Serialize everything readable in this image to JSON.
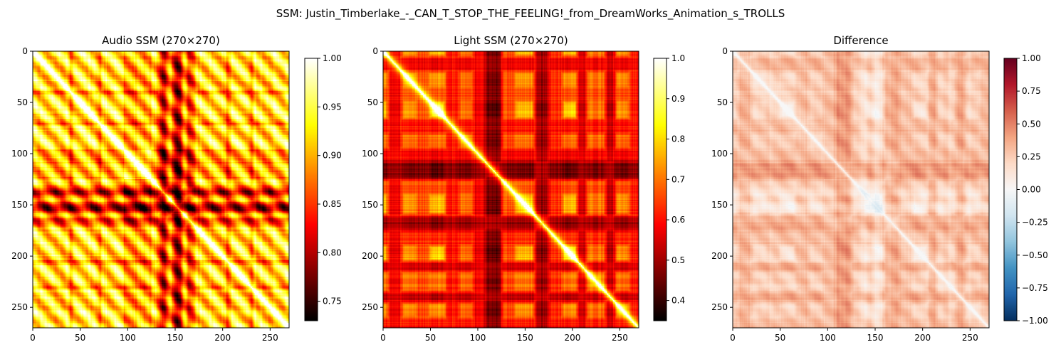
{
  "chart_data": {
    "type": "heatmap",
    "title": "SSM: Justin_Timberlake_-_CAN_T_STOP_THE_FEELING!_from_DreamWorks_Animation_s_TROLLS",
    "panels": [
      {
        "id": "audio",
        "title": "Audio SSM (270×270)",
        "size": 270,
        "colormap": "hot",
        "vmin": 0.73,
        "vmax": 1.0,
        "x_ticks": [
          0,
          50,
          100,
          150,
          200,
          250
        ],
        "y_ticks": [
          0,
          50,
          100,
          150,
          200,
          250
        ],
        "colorbar_ticks": [
          0.75,
          0.8,
          0.85,
          0.9,
          0.95,
          1.0
        ],
        "colorbar_tick_labels": [
          "0.75",
          "0.80",
          "0.85",
          "0.90",
          "0.95",
          "1.00"
        ]
      },
      {
        "id": "light",
        "title": "Light SSM (270×270)",
        "size": 270,
        "colormap": "hot",
        "vmin": 0.35,
        "vmax": 1.0,
        "x_ticks": [
          0,
          50,
          100,
          150,
          200,
          250
        ],
        "y_ticks": [
          0,
          50,
          100,
          150,
          200,
          250
        ],
        "colorbar_ticks": [
          0.4,
          0.5,
          0.6,
          0.7,
          0.8,
          0.9,
          1.0
        ],
        "colorbar_tick_labels": [
          "0.4",
          "0.5",
          "0.6",
          "0.7",
          "0.8",
          "0.9",
          "1.0"
        ]
      },
      {
        "id": "difference",
        "title": "Difference",
        "size": 270,
        "colormap": "RdBu_r",
        "vmin": -1.0,
        "vmax": 1.0,
        "x_ticks": [
          0,
          50,
          100,
          150,
          200,
          250
        ],
        "y_ticks": [
          0,
          50,
          100,
          150,
          200,
          250
        ],
        "colorbar_ticks": [
          -1.0,
          -0.75,
          -0.5,
          -0.25,
          0.0,
          0.25,
          0.5,
          0.75,
          1.0
        ],
        "colorbar_tick_labels": [
          "−1.00",
          "−0.75",
          "−0.50",
          "−0.25",
          "0.00",
          "0.25",
          "0.50",
          "0.75",
          "1.00"
        ]
      }
    ],
    "segments": [
      {
        "start": 0,
        "end": 5,
        "level": 0.75
      },
      {
        "start": 5,
        "end": 20,
        "level": 0.45
      },
      {
        "start": 20,
        "end": 35,
        "level": 0.7
      },
      {
        "start": 35,
        "end": 50,
        "level": 0.6
      },
      {
        "start": 50,
        "end": 65,
        "level": 0.85
      },
      {
        "start": 65,
        "end": 80,
        "level": 0.5
      },
      {
        "start": 80,
        "end": 95,
        "level": 0.65
      },
      {
        "start": 95,
        "end": 108,
        "level": 0.45
      },
      {
        "start": 108,
        "end": 125,
        "level": 0.25
      },
      {
        "start": 125,
        "end": 140,
        "level": 0.6
      },
      {
        "start": 140,
        "end": 160,
        "level": 0.75
      },
      {
        "start": 160,
        "end": 175,
        "level": 0.3
      },
      {
        "start": 175,
        "end": 190,
        "level": 0.55
      },
      {
        "start": 190,
        "end": 205,
        "level": 0.8
      },
      {
        "start": 205,
        "end": 215,
        "level": 0.4
      },
      {
        "start": 215,
        "end": 235,
        "level": 0.65
      },
      {
        "start": 235,
        "end": 245,
        "level": 0.35
      },
      {
        "start": 245,
        "end": 260,
        "level": 0.7
      },
      {
        "start": 260,
        "end": 270,
        "level": 0.5
      }
    ],
    "audio_dark_bands": [
      {
        "center": 137,
        "width": 5,
        "depth": 0.8
      },
      {
        "center": 152,
        "width": 6,
        "depth": 0.9
      },
      {
        "center": 165,
        "width": 5,
        "depth": 0.55
      },
      {
        "center": 40,
        "width": 2,
        "depth": 0.35
      },
      {
        "center": 70,
        "width": 2,
        "depth": 0.3
      },
      {
        "center": 205,
        "width": 3,
        "depth": 0.35
      },
      {
        "center": 230,
        "width": 2,
        "depth": 0.3
      }
    ]
  }
}
